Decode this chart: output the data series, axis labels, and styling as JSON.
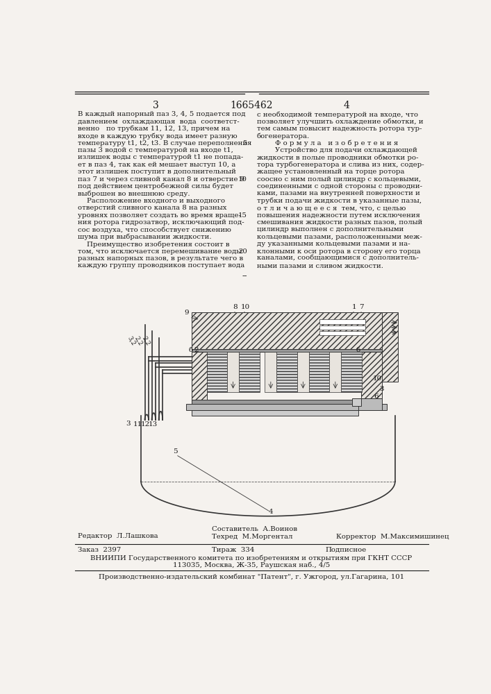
{
  "page_width": 7.07,
  "page_height": 10.0,
  "bg_color": "#f5f2ee",
  "text_color": "#1a1a1a",
  "header_number_left": "3",
  "header_patent": "1665462",
  "header_number_right": "4",
  "left_col_text": [
    "В каждый напорный паз 3, 4, 5 подается под",
    "давлением  охлаждающая  вода  соответст-",
    "венно   по трубкам 11, 12, 13, причем на",
    "входе в каждую трубку вода имеет разную",
    "температуру t1, t2, t3. В случае переполнения",
    "пазы 3 водой с температурой на входе t1,",
    "излишек воды с температурой t1 не попада-",
    "ет в паз 4, так как ей мешает выступ 10, а",
    "этот излишек поступит в дополнительный",
    "паз 7 и через сливной канал 8 и отверстие 9",
    "под действием центробежной силы будет",
    "выброшен во внешнюю среду.",
    "    Расположение входного и выходного",
    "отверстий сливного канала 8 на разных",
    "уровнях позволяет создать во время враще-",
    "ния ротора гидрозатвор, исключающий под-",
    "сос воздуха, что способствует снижению",
    "шума при выбрасывании жидкости.",
    "    Преимущество изобретения состоит в",
    "том, что исключается перемешивание воды",
    "разных напорных пазов, в результате чего в",
    "каждую группу проводников поступает вода"
  ],
  "right_col_text": [
    "с необходимой температурой на входе, что",
    "позволяет улучшить охлаждение обмотки, и",
    "тем самым повысит надежность ротора тур-",
    "богенератора.",
    "        Ф о р м у л а   и з о б р е т е н и я",
    "        Устройство для подачи охлаждающей",
    "жидкости в полые проводники обмотки ро-",
    "тора турбогенератора и слива из них, содер-",
    "жащее установленный на торце ротора",
    "соосно с ним полый цилиндр с кольцевыми,",
    "соединенными с одной стороны с проводни-",
    "ками, пазами на внутренней поверхности и",
    "трубки подачи жидкости в указанные пазы,",
    "о т л и ч а ю щ е е с я  тем, что, с целью",
    "повышения надежности путем исключения",
    "смешивания жидкости разных пазов, полый",
    "цилиндр выполнен с дополнительными",
    "кольцевыми пазами, расположенными меж-",
    "ду указанными кольцевыми пазами и на-",
    "клонными к оси ротора в сторону его торца",
    "каналами, сообщающимися с дополнитель-",
    "ными пазами и сливом жидкости."
  ],
  "footer_editor": "Редактор  Л.Лашкова",
  "footer_composer_label": "Составитель  А.Воинов",
  "footer_techred": "Техред  М.Моргентал",
  "footer_corrector": "Корректор  М.Максимишинец",
  "footer_order": "Заказ  2397",
  "footer_tirazh": "Тираж  334",
  "footer_podpisnoe": "Подписное",
  "footer_vniip1": "ВНИИПИ Государственного комитета по изобретениям и открытиям при ГКНТ СССР",
  "footer_vniip2": "113035, Москва, Ж-35, Раушская наб., 4/5",
  "footer_print": "Производственно-издательский комбинат \"Патент\", г. Ужгород, ул.Гагарина, 101"
}
